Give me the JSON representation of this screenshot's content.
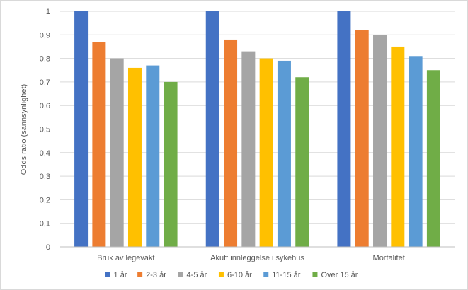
{
  "chart_data": {
    "type": "bar",
    "title": "",
    "xlabel": "",
    "ylabel": "Odds ratio (sannsynlighet)",
    "ylim": [
      0,
      1
    ],
    "yticks": [
      0,
      0.1,
      0.2,
      0.3,
      0.4,
      0.5,
      0.6,
      0.7,
      0.8,
      0.9,
      1
    ],
    "ytick_labels": [
      "0",
      "0,1",
      "0,2",
      "0,3",
      "0,4",
      "0,5",
      "0,6",
      "0,7",
      "0,8",
      "0,9",
      "1"
    ],
    "grid": true,
    "legend_position": "bottom",
    "categories": [
      "Bruk av legevakt",
      "Akutt innleggelse i sykehus",
      "Mortalitet"
    ],
    "series": [
      {
        "name": "1 år",
        "color": "#4472C4",
        "values": [
          1.0,
          1.0,
          1.0
        ]
      },
      {
        "name": "2-3 år",
        "color": "#ED7D31",
        "values": [
          0.87,
          0.88,
          0.92
        ]
      },
      {
        "name": "4-5 år",
        "color": "#A5A5A5",
        "values": [
          0.8,
          0.83,
          0.9
        ]
      },
      {
        "name": "6-10 år",
        "color": "#FFC000",
        "values": [
          0.76,
          0.8,
          0.85
        ]
      },
      {
        "name": "11-15 år",
        "color": "#5B9BD5",
        "values": [
          0.77,
          0.79,
          0.81
        ]
      },
      {
        "name": "Over 15 år",
        "color": "#70AD47",
        "values": [
          0.7,
          0.72,
          0.75
        ]
      }
    ]
  }
}
